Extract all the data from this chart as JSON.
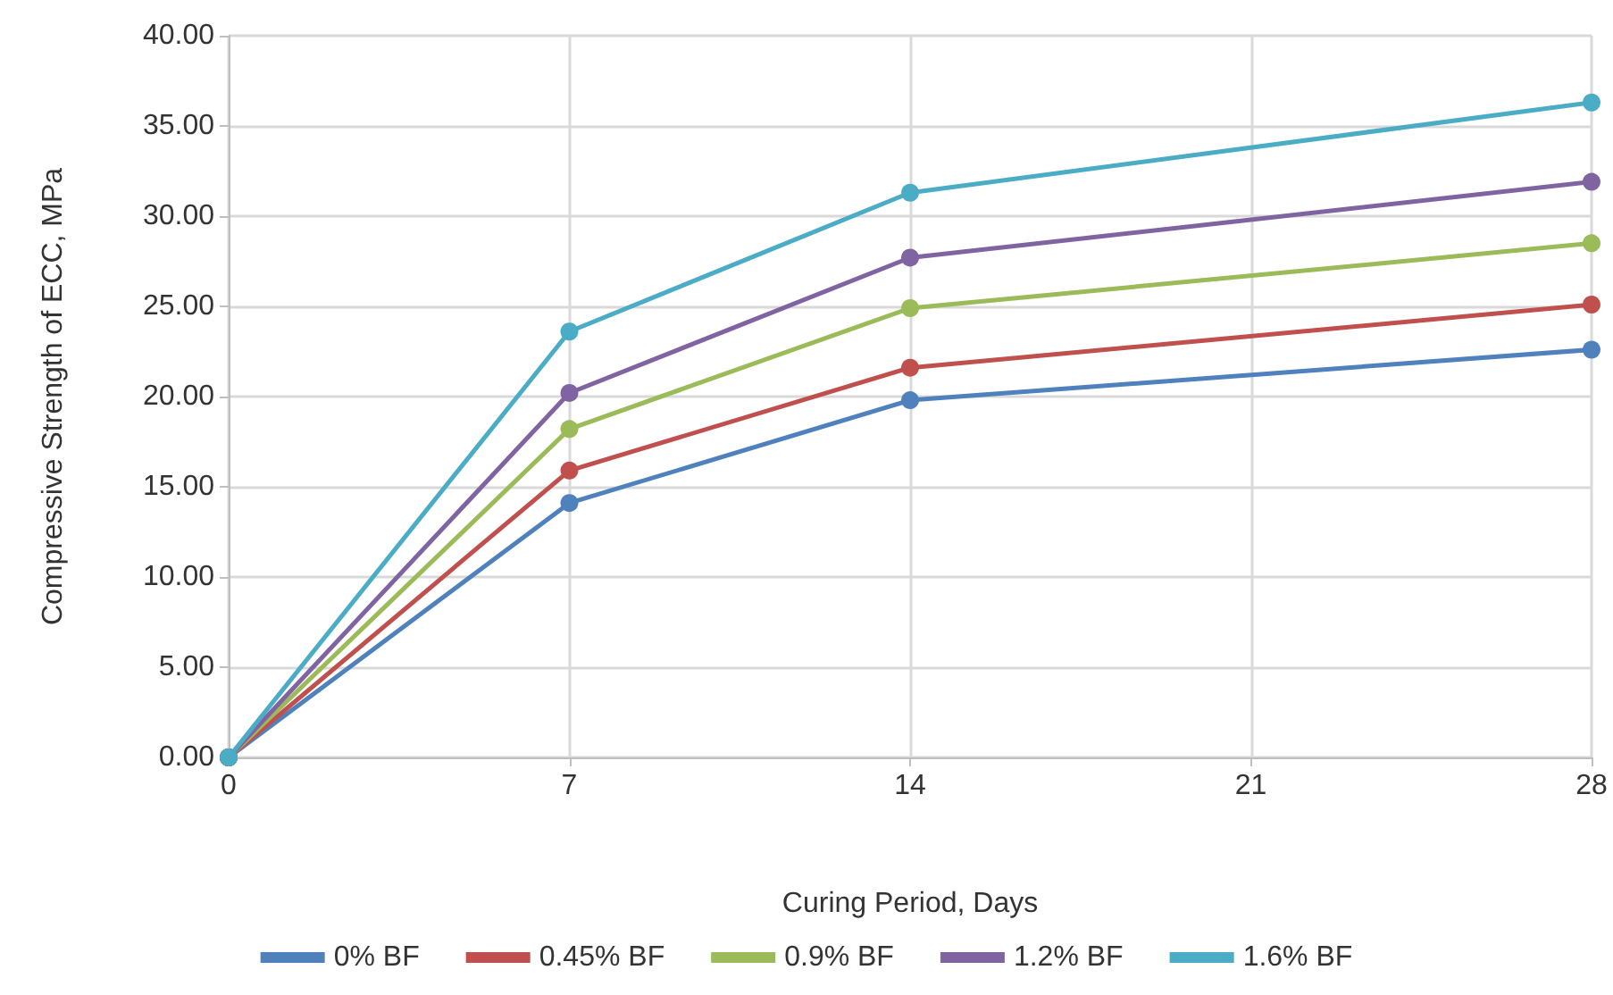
{
  "chart_data": {
    "type": "line",
    "xlabel": "Curing Period, Days",
    "ylabel": "Compressive Strength of ECC, MPa",
    "x": [
      0,
      7,
      14,
      28
    ],
    "series": [
      {
        "name": "0% BF",
        "color": "#4f81bd",
        "values": [
          0,
          14.1,
          19.8,
          22.6
        ]
      },
      {
        "name": "0.45% BF",
        "color": "#c0504d",
        "values": [
          0,
          15.9,
          21.6,
          25.1
        ]
      },
      {
        "name": "0.9% BF",
        "color": "#9bbb59",
        "values": [
          0,
          18.2,
          24.9,
          28.5
        ]
      },
      {
        "name": "1.2% BF",
        "color": "#8064a2",
        "values": [
          0,
          20.2,
          27.7,
          31.9
        ]
      },
      {
        "name": "1.6% BF",
        "color": "#4bacc6",
        "values": [
          0,
          23.6,
          31.3,
          36.3
        ]
      }
    ],
    "xlim": [
      0,
      28
    ],
    "xticks": [
      0,
      7,
      14,
      21,
      28
    ],
    "ylim": [
      0,
      40
    ],
    "yticks": [
      {
        "value": 0,
        "label": "0.00"
      },
      {
        "value": 5,
        "label": "5.00"
      },
      {
        "value": 10,
        "label": "10.00"
      },
      {
        "value": 15,
        "label": "15.00"
      },
      {
        "value": 20,
        "label": "20.00"
      },
      {
        "value": 25,
        "label": "25.00"
      },
      {
        "value": 30,
        "label": "30.00"
      },
      {
        "value": 35,
        "label": "35.00"
      },
      {
        "value": 40,
        "label": "40.00"
      }
    ],
    "grid": true,
    "legend": "bottom",
    "marker": "circle",
    "line_style": "solid"
  }
}
